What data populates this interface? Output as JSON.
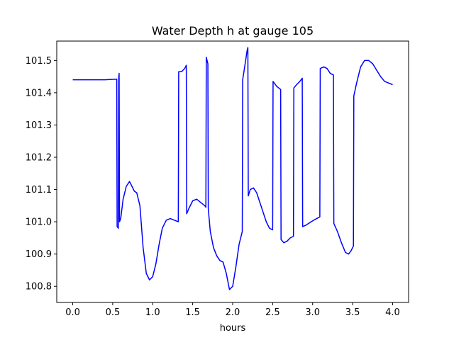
{
  "chart_data": {
    "type": "line",
    "title": "Water Depth h at gauge 105",
    "xlabel": "hours",
    "ylabel": "",
    "xlim": [
      -0.2,
      4.2
    ],
    "ylim": [
      100.75,
      101.56
    ],
    "grid": false,
    "x_ticks": [
      0.0,
      0.5,
      1.0,
      1.5,
      2.0,
      2.5,
      3.0,
      3.5,
      4.0
    ],
    "x_tick_labels": [
      "0.0",
      "0.5",
      "1.0",
      "1.5",
      "2.0",
      "2.5",
      "3.0",
      "3.5",
      "4.0"
    ],
    "y_ticks": [
      100.8,
      100.9,
      101.0,
      101.1,
      101.2,
      101.3,
      101.4,
      101.5
    ],
    "y_tick_labels": [
      "100.8",
      "100.9",
      "101.0",
      "101.1",
      "101.2",
      "101.3",
      "101.4",
      "101.5"
    ],
    "series": [
      {
        "color": "#0000ff",
        "x": [
          0.0,
          0.2,
          0.4,
          0.55,
          0.555,
          0.57,
          0.575,
          0.58,
          0.585,
          0.6,
          0.63,
          0.67,
          0.71,
          0.74,
          0.77,
          0.8,
          0.84,
          0.88,
          0.92,
          0.96,
          1.0,
          1.04,
          1.08,
          1.12,
          1.17,
          1.22,
          1.27,
          1.32,
          1.325,
          1.36,
          1.4,
          1.42,
          1.425,
          1.45,
          1.5,
          1.55,
          1.6,
          1.65,
          1.665,
          1.67,
          1.68,
          1.69,
          1.695,
          1.72,
          1.76,
          1.8,
          1.84,
          1.88,
          1.92,
          1.96,
          2.0,
          2.04,
          2.08,
          2.12,
          2.125,
          2.15,
          2.18,
          2.19,
          2.195,
          2.22,
          2.26,
          2.3,
          2.34,
          2.38,
          2.42,
          2.46,
          2.5,
          2.505,
          2.55,
          2.6,
          2.605,
          2.64,
          2.68,
          2.72,
          2.76,
          2.765,
          2.8,
          2.84,
          2.87,
          2.875,
          2.92,
          2.98,
          3.05,
          3.09,
          3.095,
          3.14,
          3.18,
          3.22,
          3.26,
          3.265,
          3.31,
          3.36,
          3.41,
          3.45,
          3.48,
          3.51,
          3.515,
          3.55,
          3.6,
          3.65,
          3.7,
          3.75,
          3.8,
          3.85,
          3.9,
          3.95,
          4.0
        ],
        "y": [
          101.44,
          101.44,
          101.44,
          101.442,
          100.985,
          100.98,
          101.445,
          101.46,
          101.0,
          101.01,
          101.07,
          101.11,
          101.125,
          101.11,
          101.095,
          101.09,
          101.05,
          100.92,
          100.84,
          100.82,
          100.83,
          100.87,
          100.93,
          100.98,
          101.005,
          101.01,
          101.005,
          101.0,
          101.465,
          101.465,
          101.475,
          101.485,
          101.025,
          101.04,
          101.065,
          101.07,
          101.06,
          101.05,
          101.045,
          101.51,
          101.5,
          101.49,
          101.04,
          100.97,
          100.92,
          100.895,
          100.88,
          100.875,
          100.84,
          100.79,
          100.8,
          100.86,
          100.93,
          100.97,
          101.44,
          101.48,
          101.53,
          101.54,
          101.08,
          101.1,
          101.105,
          101.09,
          101.06,
          101.03,
          101.0,
          100.98,
          100.975,
          101.435,
          101.42,
          101.41,
          100.945,
          100.935,
          100.94,
          100.95,
          100.955,
          101.415,
          101.425,
          101.435,
          101.445,
          100.985,
          100.99,
          101.0,
          101.01,
          101.015,
          101.475,
          101.48,
          101.475,
          101.46,
          101.455,
          100.995,
          100.97,
          100.935,
          100.905,
          100.9,
          100.91,
          100.925,
          101.39,
          101.43,
          101.48,
          101.5,
          101.5,
          101.49,
          101.47,
          101.45,
          101.435,
          101.43,
          101.425
        ]
      }
    ]
  }
}
